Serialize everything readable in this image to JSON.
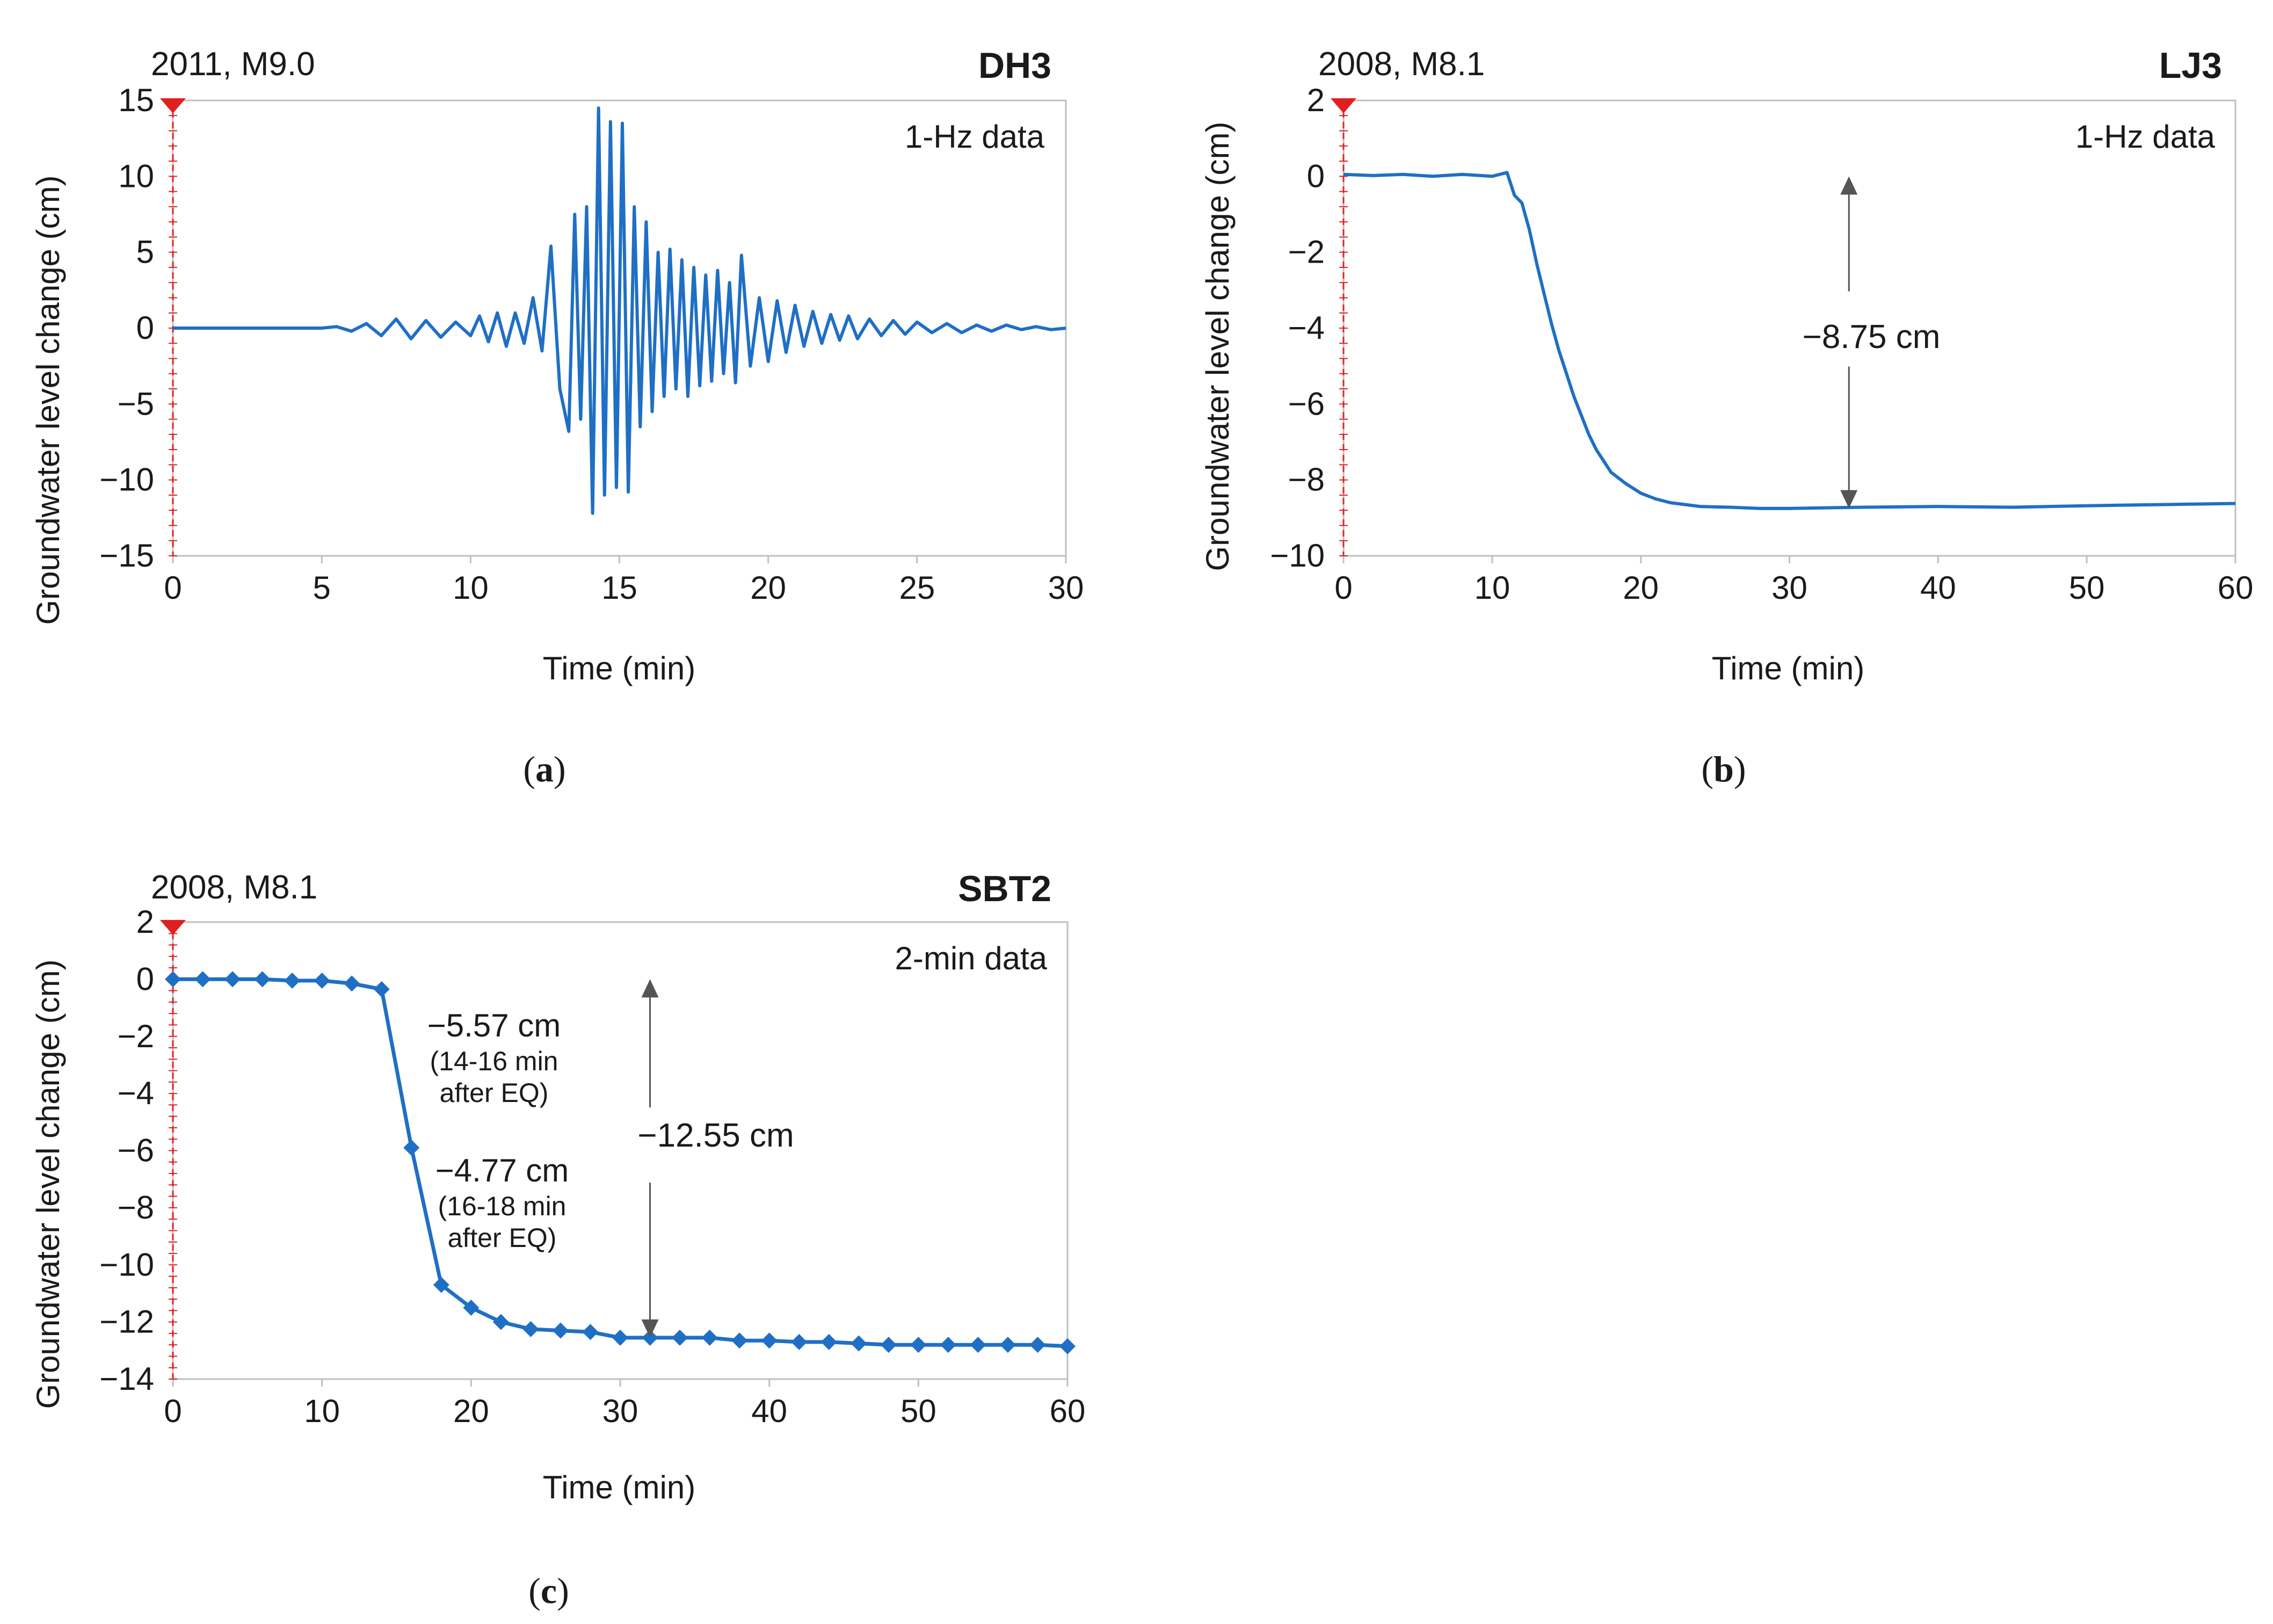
{
  "figure": {
    "panels": [
      {
        "id": "a",
        "label_prefix": "(",
        "label_letter": "a",
        "label_suffix": ")"
      },
      {
        "id": "b",
        "label_prefix": "(",
        "label_letter": "b",
        "label_suffix": ")"
      },
      {
        "id": "c",
        "label_prefix": "(",
        "label_letter": "c",
        "label_suffix": ")"
      }
    ]
  },
  "colors": {
    "series": "#1f6fc5",
    "marker": "#e02020",
    "axis": "#bfbfbf",
    "arrow": "#555555"
  },
  "chart_data": [
    {
      "type": "line",
      "event": "2011, M9.0",
      "station": "DH3",
      "data_note": "1-Hz data",
      "xlabel": "Time (min)",
      "ylabel": "Groundwater level change (cm)",
      "xlim": [
        0,
        30
      ],
      "ylim": [
        -15,
        15
      ],
      "xticks": [
        0,
        5,
        10,
        15,
        20,
        25,
        30
      ],
      "xtick_labels": [
        "0",
        "5",
        "10",
        "15",
        "20",
        "25",
        "30"
      ],
      "yticks": [
        15,
        10,
        5,
        0,
        -5,
        -10,
        -15
      ],
      "ytick_labels": [
        "15",
        "10",
        "5",
        "0",
        "−5",
        "−10",
        "−15"
      ],
      "grid": false,
      "earthquake_marker_time": 0,
      "series": [
        {
          "x": [
            0,
            5,
            5.5,
            6,
            6.5,
            7,
            7.5,
            8,
            8.5,
            9,
            9.5,
            10,
            10.3,
            10.6,
            10.9,
            11.2,
            11.5,
            11.8,
            12.1,
            12.4,
            12.7,
            13.0,
            13.3,
            13.5,
            13.7,
            13.9,
            14.1,
            14.3,
            14.5,
            14.7,
            14.9,
            15.1,
            15.3,
            15.5,
            15.7,
            15.9,
            16.1,
            16.3,
            16.5,
            16.7,
            16.9,
            17.1,
            17.3,
            17.5,
            17.7,
            17.9,
            18.1,
            18.3,
            18.5,
            18.7,
            18.9,
            19.1,
            19.4,
            19.7,
            20.0,
            20.3,
            20.6,
            20.9,
            21.2,
            21.5,
            21.8,
            22.1,
            22.4,
            22.7,
            23.0,
            23.4,
            23.8,
            24.2,
            24.6,
            25.0,
            25.5,
            26.0,
            26.5,
            27.0,
            27.5,
            28.0,
            28.5,
            29.0,
            29.5,
            30
          ],
          "y": [
            0,
            0,
            0.1,
            -0.2,
            0.3,
            -0.5,
            0.6,
            -0.7,
            0.5,
            -0.6,
            0.4,
            -0.5,
            0.8,
            -0.9,
            1.0,
            -1.2,
            1.0,
            -1.0,
            2.0,
            -1.5,
            5.4,
            -4.0,
            -6.8,
            7.5,
            -6.0,
            8.0,
            -12.2,
            14.5,
            -11.0,
            13.6,
            -10.5,
            13.5,
            -10.8,
            8.0,
            -6.5,
            7.0,
            -5.5,
            5.0,
            -4.5,
            5.2,
            -4.0,
            4.5,
            -4.5,
            4.0,
            -3.8,
            3.5,
            -3.5,
            3.8,
            -3.0,
            3.0,
            -3.6,
            4.8,
            -2.5,
            2.0,
            -2.2,
            1.8,
            -1.6,
            1.5,
            -1.2,
            1.1,
            -1.0,
            0.9,
            -0.8,
            0.8,
            -0.7,
            0.6,
            -0.5,
            0.5,
            -0.4,
            0.4,
            -0.3,
            0.3,
            -0.3,
            0.2,
            -0.2,
            0.2,
            -0.1,
            0.1,
            -0.1,
            0
          ]
        }
      ]
    },
    {
      "type": "line",
      "event": "2008, M8.1",
      "station": "LJ3",
      "data_note": "1-Hz data",
      "xlabel": "Time (min)",
      "ylabel": "Groundwater level change (cm)",
      "xlim": [
        0,
        60
      ],
      "ylim": [
        -10,
        2
      ],
      "xticks": [
        0,
        10,
        20,
        30,
        40,
        50,
        60
      ],
      "xtick_labels": [
        "0",
        "10",
        "20",
        "30",
        "40",
        "50",
        "60"
      ],
      "yticks": [
        2,
        0,
        -2,
        -4,
        -6,
        -8,
        -10
      ],
      "ytick_labels": [
        "2",
        "0",
        "−2",
        "−4",
        "−6",
        "−8",
        "−10"
      ],
      "grid": false,
      "earthquake_marker_time": 0,
      "annotation": {
        "text": "−8.75 cm",
        "x": 34,
        "y_top": 0,
        "y_bottom": -8.75
      },
      "series": [
        {
          "x": [
            0,
            2,
            4,
            6,
            8,
            10,
            11,
            11.5,
            12,
            12.5,
            13,
            13.5,
            14,
            14.5,
            15,
            15.5,
            16,
            16.5,
            17,
            17.5,
            18,
            19,
            20,
            21,
            22,
            23,
            24,
            26,
            28,
            30,
            35,
            40,
            45,
            50,
            55,
            60
          ],
          "y": [
            0.05,
            0.02,
            0.05,
            0.0,
            0.05,
            0.0,
            0.1,
            -0.5,
            -0.7,
            -1.4,
            -2.3,
            -3.1,
            -3.9,
            -4.6,
            -5.2,
            -5.8,
            -6.3,
            -6.8,
            -7.2,
            -7.5,
            -7.8,
            -8.1,
            -8.35,
            -8.5,
            -8.6,
            -8.65,
            -8.7,
            -8.72,
            -8.75,
            -8.75,
            -8.72,
            -8.7,
            -8.72,
            -8.68,
            -8.65,
            -8.62
          ]
        }
      ]
    },
    {
      "type": "line",
      "event": "2008, M8.1",
      "station": "SBT2",
      "data_note": "2-min data",
      "xlabel": "Time (min)",
      "ylabel": "Groundwater level change (cm)",
      "xlim": [
        0,
        60
      ],
      "ylim": [
        -14,
        2
      ],
      "xticks": [
        0,
        10,
        20,
        30,
        40,
        50,
        60
      ],
      "xtick_labels": [
        "0",
        "10",
        "20",
        "30",
        "40",
        "50",
        "60"
      ],
      "yticks": [
        2,
        0,
        -2,
        -4,
        -6,
        -8,
        -10,
        -12,
        -14
      ],
      "ytick_labels": [
        "2",
        "0",
        "−2",
        "−4",
        "−6",
        "−8",
        "−10",
        "−12",
        "−14"
      ],
      "grid": false,
      "earthquake_marker_time": 0,
      "annotations": [
        {
          "text": "−5.57 cm",
          "note_line1": "(14-16 min",
          "note_line2": "after EQ)"
        },
        {
          "text": "−4.77 cm",
          "note_line1": "(16-18 min",
          "note_line2": "after EQ)"
        },
        {
          "text": "−12.55 cm",
          "x": 32,
          "y_top": 0,
          "y_bottom": -12.55
        }
      ],
      "series": [
        {
          "x": [
            0,
            2,
            4,
            6,
            8,
            10,
            12,
            14,
            16,
            18,
            20,
            22,
            24,
            26,
            28,
            30,
            32,
            34,
            36,
            38,
            40,
            42,
            44,
            46,
            48,
            50,
            52,
            54,
            56,
            58,
            60
          ],
          "y": [
            0,
            0,
            0,
            0,
            -0.05,
            -0.05,
            -0.15,
            -0.35,
            -5.9,
            -10.7,
            -11.5,
            -12.0,
            -12.25,
            -12.3,
            -12.35,
            -12.55,
            -12.55,
            -12.55,
            -12.55,
            -12.65,
            -12.65,
            -12.7,
            -12.7,
            -12.75,
            -12.8,
            -12.8,
            -12.8,
            -12.8,
            -12.8,
            -12.8,
            -12.85
          ]
        }
      ]
    }
  ]
}
